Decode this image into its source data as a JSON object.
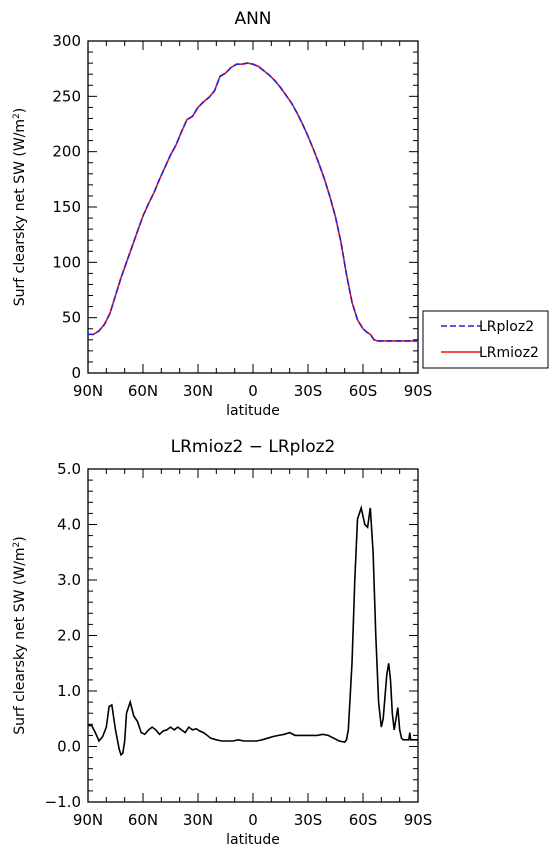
{
  "chart_data": [
    {
      "type": "line",
      "title": "ANN",
      "xlabel": "latitude",
      "ylabel": "Surf clearsky net SW (W/m²)",
      "xlim": [
        90,
        -90
      ],
      "ylim": [
        0,
        300
      ],
      "x_ticks": [
        90,
        60,
        30,
        0,
        -30,
        -60,
        -90
      ],
      "x_tick_labels": [
        "90N",
        "60N",
        "30N",
        "0",
        "30S",
        "60S",
        "90S"
      ],
      "y_ticks": [
        0,
        50,
        100,
        150,
        200,
        250,
        300
      ],
      "y_tick_labels": [
        "0",
        "50",
        "100",
        "150",
        "200",
        "250",
        "300"
      ],
      "grid": false,
      "legend_position": "right-outside",
      "series": [
        {
          "name": "LRploz2",
          "color": "#2222dd",
          "dash": "dashed",
          "x": [
            90,
            87,
            84,
            81,
            78,
            75,
            72,
            69,
            66,
            63,
            60,
            57,
            54,
            51,
            48,
            45,
            42,
            39,
            36,
            33,
            30,
            27,
            24,
            21,
            18,
            15,
            12,
            9,
            6,
            3,
            0,
            -3,
            -6,
            -9,
            -12,
            -15,
            -18,
            -21,
            -24,
            -27,
            -30,
            -33,
            -36,
            -39,
            -42,
            -45,
            -48,
            -51,
            -54,
            -57,
            -60,
            -62,
            -64,
            -66,
            -68,
            -70,
            -72,
            -75,
            -78,
            -81,
            -84,
            -87,
            -90
          ],
          "y": [
            35,
            35,
            38,
            44,
            54,
            70,
            86,
            100,
            114,
            128,
            142,
            153,
            163,
            175,
            186,
            197,
            206,
            218,
            229,
            232,
            240,
            245,
            249,
            255,
            268,
            271,
            276,
            279,
            279,
            280,
            279,
            277,
            273,
            269,
            264,
            258,
            251,
            244,
            235,
            225,
            214,
            202,
            189,
            175,
            159,
            141,
            118,
            89,
            64,
            48,
            40,
            37,
            35,
            30,
            29,
            29,
            29,
            29,
            29,
            29,
            29,
            29,
            29
          ]
        },
        {
          "name": "LRmioz2",
          "color": "#ee1111",
          "dash": "solid",
          "x": [
            90,
            87,
            84,
            81,
            78,
            75,
            72,
            69,
            66,
            63,
            60,
            57,
            54,
            51,
            48,
            45,
            42,
            39,
            36,
            33,
            30,
            27,
            24,
            21,
            18,
            15,
            12,
            9,
            6,
            3,
            0,
            -3,
            -6,
            -9,
            -12,
            -15,
            -18,
            -21,
            -24,
            -27,
            -30,
            -33,
            -36,
            -39,
            -42,
            -45,
            -48,
            -51,
            -54,
            -57,
            -60,
            -62,
            -64,
            -66,
            -68,
            -70,
            -72,
            -75,
            -78,
            -81,
            -84,
            -87,
            -90
          ],
          "y": [
            35,
            35,
            38,
            44,
            54,
            70,
            86,
            100,
            114,
            128,
            142,
            153,
            163,
            175,
            186,
            197,
            206,
            218,
            229,
            232,
            240,
            245,
            249,
            255,
            268,
            271,
            276,
            279,
            279,
            280,
            279,
            277,
            273,
            269,
            264,
            258,
            251,
            244,
            235,
            225,
            214,
            202,
            189,
            175,
            159,
            141,
            118,
            89,
            64,
            48,
            40,
            37,
            35,
            30,
            29,
            29,
            29,
            29,
            29,
            29,
            29,
            29,
            29
          ]
        }
      ]
    },
    {
      "type": "line",
      "title": "LRmioz2 − LRploz2",
      "xlabel": "latitude",
      "ylabel": "Surf clearsky net SW (W/m²)",
      "xlim": [
        90,
        -90
      ],
      "ylim": [
        -1.0,
        5.0
      ],
      "x_ticks": [
        90,
        60,
        30,
        0,
        -30,
        -60,
        -90
      ],
      "x_tick_labels": [
        "90N",
        "60N",
        "30N",
        "0",
        "30S",
        "60S",
        "90S"
      ],
      "y_ticks": [
        -1,
        0,
        1,
        2,
        3,
        4,
        5
      ],
      "y_tick_labels": [
        "−1.0",
        "0.0",
        "1.0",
        "2.0",
        "3.0",
        "4.0",
        "5.0"
      ],
      "grid": false,
      "series": [
        {
          "color": "#000000",
          "dash": "solid",
          "x": [
            90,
            88,
            86,
            84,
            82,
            80,
            78.5,
            77,
            75,
            73,
            72,
            71,
            70,
            69,
            67,
            65,
            63,
            61,
            59,
            57,
            55,
            53,
            51,
            49,
            47,
            45,
            43,
            41,
            39,
            37,
            35,
            33,
            31,
            29,
            27,
            25,
            23,
            20,
            17,
            14,
            11,
            8,
            5,
            2,
            0,
            -2,
            -5,
            -8,
            -11,
            -14,
            -17,
            -20,
            -23,
            -26,
            -29,
            -32,
            -35,
            -38,
            -41,
            -44,
            -47,
            -50,
            -51,
            -52,
            -54,
            -55.5,
            -57,
            -59,
            -61,
            -62.5,
            -64,
            -65.5,
            -67,
            -68.5,
            -70,
            -71,
            -72,
            -73,
            -74,
            -75,
            -76,
            -77,
            -78,
            -79,
            -80,
            -81,
            -82,
            -83,
            -84,
            -85,
            -85.5,
            -86,
            -87,
            -88,
            -90
          ],
          "y": [
            0.38,
            0.38,
            0.25,
            0.1,
            0.18,
            0.35,
            0.72,
            0.75,
            0.3,
            -0.05,
            -0.15,
            -0.12,
            0.1,
            0.6,
            0.8,
            0.55,
            0.45,
            0.25,
            0.22,
            0.3,
            0.35,
            0.3,
            0.22,
            0.28,
            0.3,
            0.35,
            0.3,
            0.35,
            0.3,
            0.25,
            0.35,
            0.3,
            0.32,
            0.28,
            0.25,
            0.2,
            0.15,
            0.12,
            0.1,
            0.1,
            0.1,
            0.12,
            0.1,
            0.1,
            0.1,
            0.1,
            0.12,
            0.15,
            0.18,
            0.2,
            0.22,
            0.25,
            0.2,
            0.2,
            0.2,
            0.2,
            0.2,
            0.22,
            0.2,
            0.15,
            0.1,
            0.08,
            0.12,
            0.3,
            1.5,
            3.0,
            4.1,
            4.3,
            4.0,
            3.95,
            4.3,
            3.5,
            2.0,
            0.8,
            0.35,
            0.5,
            0.9,
            1.3,
            1.5,
            1.2,
            0.6,
            0.3,
            0.5,
            0.7,
            0.3,
            0.15,
            0.12,
            0.12,
            0.12,
            0.12,
            0.25,
            0.12,
            0.12,
            0.12,
            0.12
          ]
        }
      ]
    }
  ],
  "legend": {
    "entries": [
      "LRploz2",
      "LRmioz2"
    ]
  }
}
